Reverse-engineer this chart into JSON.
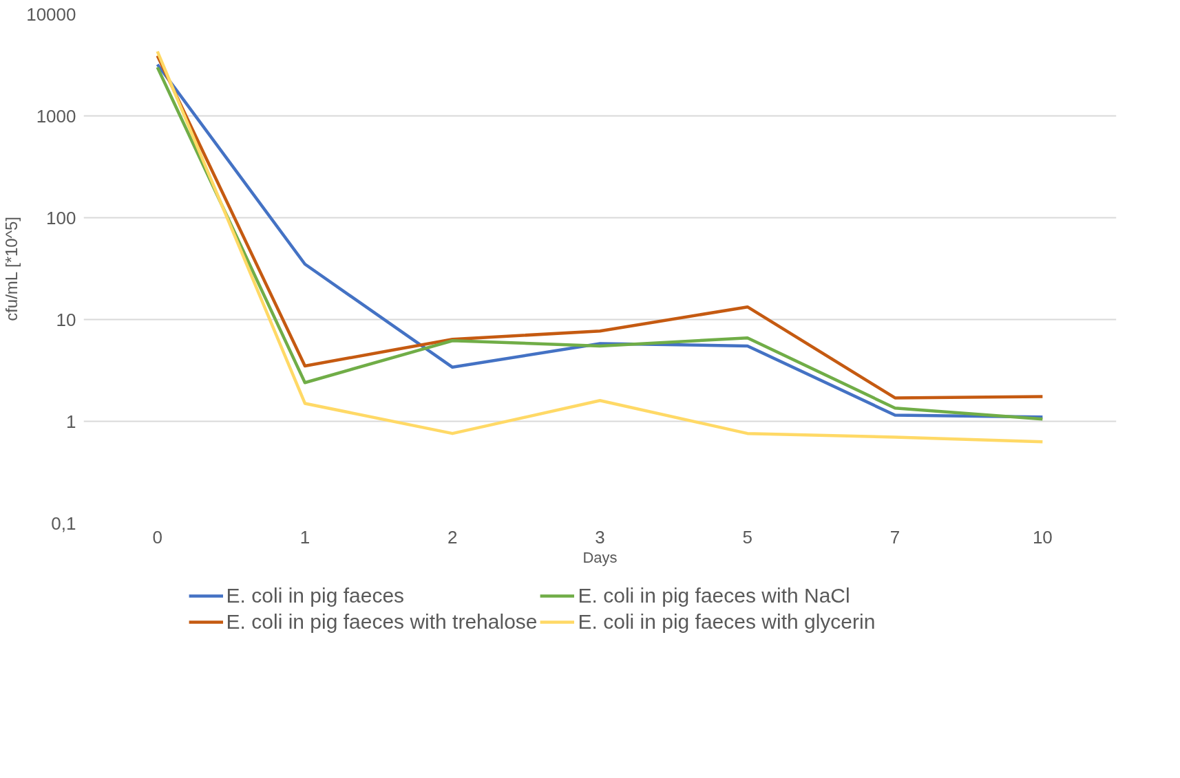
{
  "chart_data": {
    "type": "line",
    "xlabel": "Days",
    "ylabel": "cfu/mL [*10^5]",
    "categories": [
      "0",
      "1",
      "2",
      "3",
      "5",
      "7",
      "10"
    ],
    "series": [
      {
        "name": "E. coli in pig faeces",
        "color": "#4472c4",
        "values": [
          3200,
          35,
          3.4,
          5.8,
          5.5,
          1.15,
          1.1
        ]
      },
      {
        "name": "E. coli in pig faeces with trehalose",
        "color": "#c55a11",
        "values": [
          3900,
          3.5,
          6.4,
          7.7,
          13.3,
          1.7,
          1.75
        ]
      },
      {
        "name": "E. coli in pig faeces with NaCl",
        "color": "#70ad47",
        "values": [
          3000,
          2.4,
          6.2,
          5.5,
          6.6,
          1.35,
          1.05
        ]
      },
      {
        "name": "E. coli in pig faeces with glycerin",
        "color": "#ffd966",
        "values": [
          4300,
          1.5,
          0.76,
          1.6,
          0.76,
          0.7,
          0.63
        ]
      }
    ],
    "log": "y",
    "ylim": [
      0.1,
      10000
    ],
    "yticks": [
      {
        "value": 0.1,
        "label": "0,1"
      },
      1,
      10,
      100,
      1000,
      10000
    ],
    "grid": "y",
    "legend": "bottom",
    "marker": "none",
    "line_style": "solid"
  }
}
